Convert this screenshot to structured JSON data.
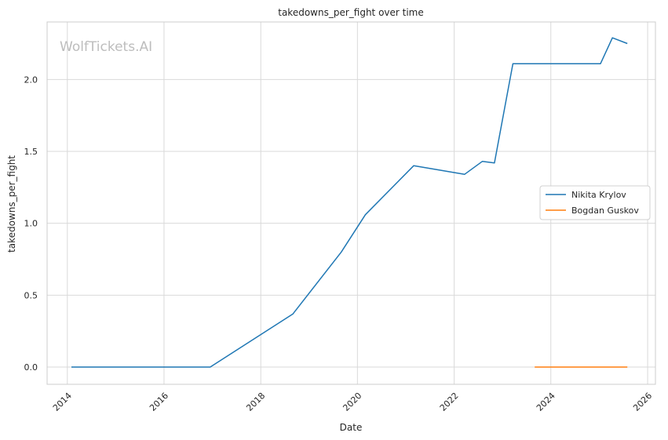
{
  "chart_data": {
    "type": "line",
    "title": "takedowns_per_fight over time",
    "xlabel": "Date",
    "ylabel": "takedowns_per_fight",
    "watermark": "WolfTickets.AI",
    "xlim": [
      "2013-08-01",
      "2026-03-01"
    ],
    "ylim": [
      -0.12,
      2.4
    ],
    "x_ticks": [
      "2014",
      "2016",
      "2018",
      "2020",
      "2022",
      "2024",
      "2026"
    ],
    "y_ticks": [
      "0.0",
      "0.5",
      "1.0",
      "1.5",
      "2.0"
    ],
    "grid": true,
    "legend_position": "center-right",
    "series": [
      {
        "name": "Nikita Krylov",
        "color": "#1f77b4",
        "points": [
          {
            "x": "2014-02-01",
            "y": 0.0
          },
          {
            "x": "2016-12-15",
            "y": 0.0
          },
          {
            "x": "2018-09-01",
            "y": 0.37
          },
          {
            "x": "2019-09-01",
            "y": 0.8
          },
          {
            "x": "2020-03-01",
            "y": 1.06
          },
          {
            "x": "2021-03-01",
            "y": 1.4
          },
          {
            "x": "2022-03-20",
            "y": 1.34
          },
          {
            "x": "2022-08-01",
            "y": 1.43
          },
          {
            "x": "2022-11-01",
            "y": 1.42
          },
          {
            "x": "2023-03-20",
            "y": 2.11
          },
          {
            "x": "2025-01-10",
            "y": 2.11
          },
          {
            "x": "2025-04-10",
            "y": 2.29
          },
          {
            "x": "2025-08-01",
            "y": 2.25
          }
        ]
      },
      {
        "name": "Bogdan Guskov",
        "color": "#ff7f0e",
        "points": [
          {
            "x": "2023-09-01",
            "y": 0.0
          },
          {
            "x": "2025-08-01",
            "y": 0.0
          }
        ]
      }
    ]
  }
}
